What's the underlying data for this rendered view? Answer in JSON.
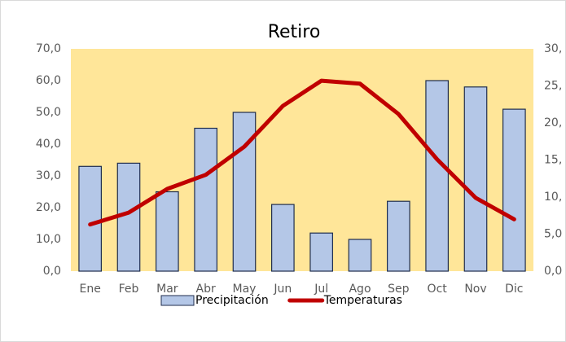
{
  "chart_data": {
    "type": "bar_line",
    "title": "Retiro",
    "categories": [
      "Ene",
      "Feb",
      "Mar",
      "Abr",
      "May",
      "Jun",
      "Jul",
      "Ago",
      "Sep",
      "Oct",
      "Nov",
      "Dic"
    ],
    "series": [
      {
        "name": "Precipitación",
        "type": "bar",
        "color": "#B4C7E7",
        "values": [
          33,
          34,
          25,
          45,
          50,
          21,
          12,
          10,
          22,
          60,
          58,
          51
        ]
      },
      {
        "name": "Temperaturas",
        "type": "line",
        "axis": "y2",
        "color": "#C00000",
        "values": [
          6.3,
          7.9,
          11.1,
          13.0,
          16.8,
          22.3,
          25.7,
          25.3,
          21.2,
          15.1,
          9.9,
          7.0
        ]
      }
    ],
    "ylim": [
      0,
      70
    ],
    "yticks": [
      {
        "value": 0,
        "label": "0,0"
      },
      {
        "value": 10,
        "label": "10,0"
      },
      {
        "value": 20,
        "label": "20,0"
      },
      {
        "value": 30,
        "label": "30,0"
      },
      {
        "value": 40,
        "label": "40,0"
      },
      {
        "value": 50,
        "label": "50,0"
      },
      {
        "value": 60,
        "label": "60,0"
      },
      {
        "value": 70,
        "label": "70,0"
      }
    ],
    "y2lim": [
      0,
      30
    ],
    "y2ticks": [
      {
        "value": 0,
        "label": "0,0"
      },
      {
        "value": 5,
        "label": "5,0"
      },
      {
        "value": 10,
        "label": "10,"
      },
      {
        "value": 15,
        "label": "15,"
      },
      {
        "value": 20,
        "label": "20,"
      },
      {
        "value": 25,
        "label": "25,"
      },
      {
        "value": 30,
        "label": "30,"
      }
    ],
    "plot_background": "#FFE699",
    "grid": false,
    "legend": "bottom"
  }
}
